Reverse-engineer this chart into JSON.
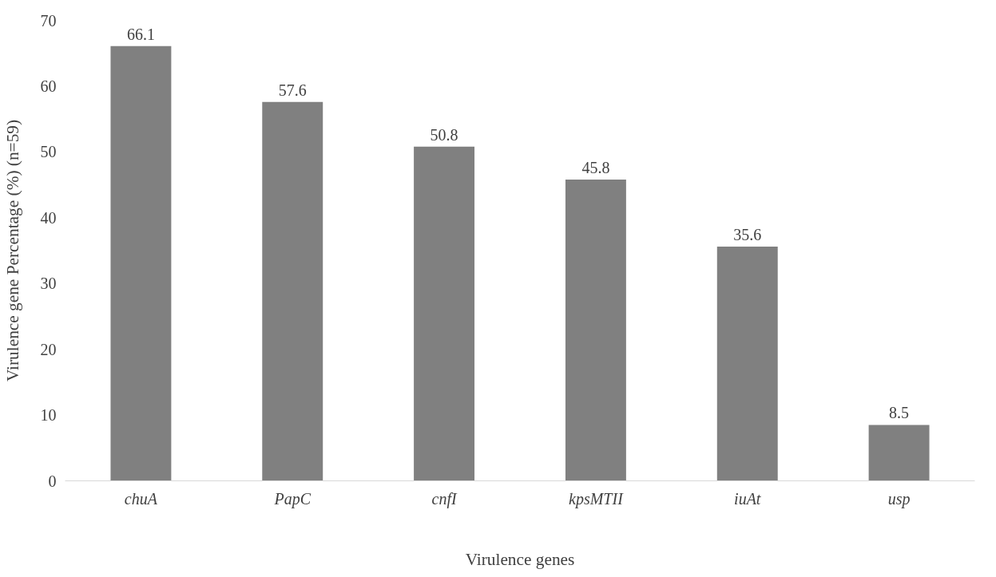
{
  "chart_data": {
    "type": "bar",
    "xlabel": "Virulence genes",
    "ylabel": "Virulence gene Percentage (%) (n=59)",
    "categories": [
      "chuA",
      "PapC",
      "cnfI",
      "kpsMTII",
      "iuAt",
      "usp"
    ],
    "values": [
      66.1,
      57.6,
      50.8,
      45.8,
      35.6,
      8.5
    ],
    "color": "#808080",
    "ylim": [
      0,
      70
    ],
    "yticks": [
      0,
      10,
      20,
      30,
      40,
      50,
      60,
      70
    ],
    "grid": false,
    "data_labels": true
  }
}
